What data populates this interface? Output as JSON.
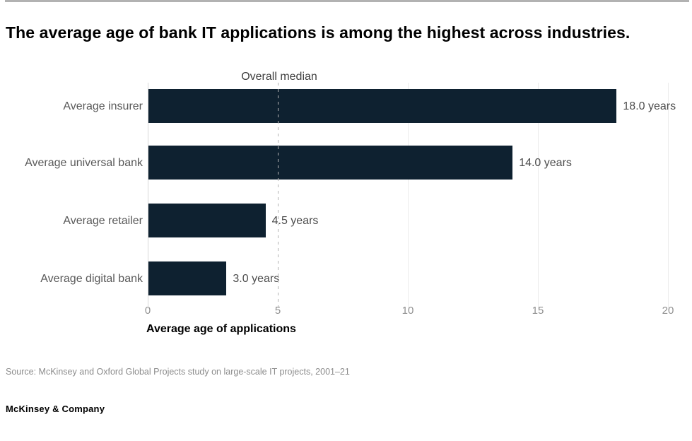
{
  "page": {
    "title": "The average age of bank IT applications is among the highest across industries.",
    "source": "Source: McKinsey and Oxford Global Projects study on large-scale IT projects, 2001–21",
    "footer": "McKinsey & Company"
  },
  "chart_data": {
    "type": "bar",
    "orientation": "horizontal",
    "title": "The average age of bank IT applications is among the highest across industries.",
    "categories": [
      "Average insurer",
      "Average universal bank",
      "Average retailer",
      "Average digital bank"
    ],
    "values": [
      18.0,
      14.0,
      4.5,
      3.0
    ],
    "value_labels": [
      "18.0 years",
      "14.0 years",
      "4.5 years",
      "3.0 years"
    ],
    "unit": "years",
    "xlabel": "Average age of applications",
    "xlim": [
      0,
      20
    ],
    "x_ticks": [
      0,
      5,
      10,
      15,
      20
    ],
    "x_tick_labels": [
      "0",
      "5",
      "10",
      "15",
      "20"
    ],
    "gridline_ticks": [
      10,
      15,
      20
    ],
    "reference_line": {
      "label": "Overall median",
      "value": 5.0,
      "style": "dashed"
    },
    "legend": "none",
    "bar_color": "#0e2130"
  }
}
